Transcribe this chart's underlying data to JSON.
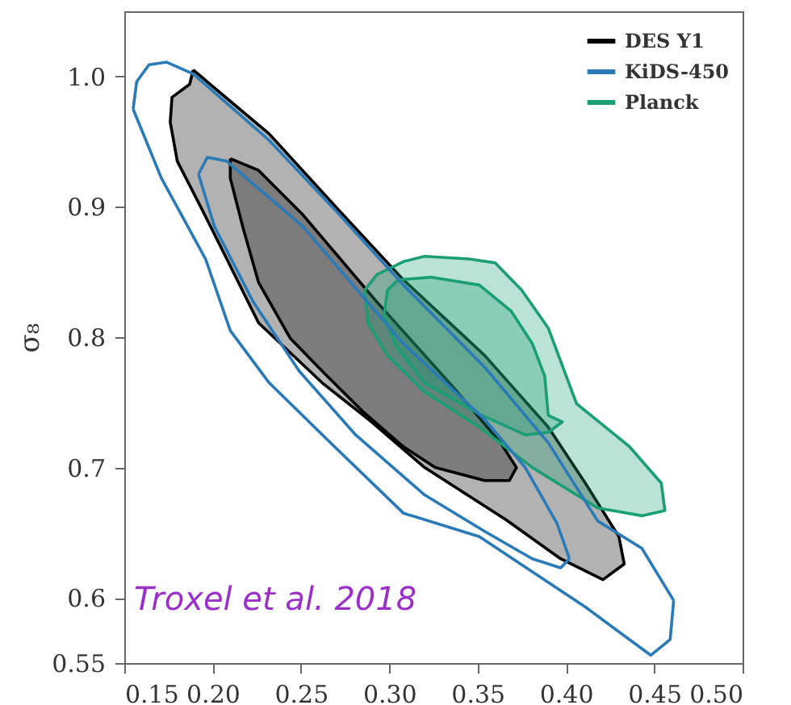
{
  "chart_data": {
    "type": "line",
    "ylabel": "σ₈",
    "xlim": [
      0.15,
      0.5
    ],
    "xticks": [
      0.15,
      {
        "value": 0.2,
        "label": "0.20"
      },
      0.25,
      {
        "value": 0.3,
        "label": "0.30"
      },
      0.35,
      {
        "value": 0.4,
        "label": "0.40"
      },
      0.45,
      {
        "value": 0.5,
        "label": "0.50"
      }
    ],
    "ylim": [
      0.55,
      1.05
    ],
    "yticks": [
      0.55,
      0.6,
      0.7,
      0.8,
      0.9,
      {
        "value": 1.0,
        "label": "1.0"
      }
    ],
    "grid": false,
    "legend": "top right",
    "marker": "none",
    "line_style": "solid",
    "annotations": [
      "Troxel et al. 2018"
    ],
    "series": [
      {
        "name": "DES Y1",
        "type": "area",
        "color": "#000000",
        "x": [
          0.189,
          0.232,
          0.269,
          0.308,
          0.354,
          0.39,
          0.411,
          0.43,
          0.433,
          0.421,
          0.397,
          0.366,
          0.32,
          0.29,
          0.262,
          0.226,
          0.208,
          0.194,
          0.18,
          0.176,
          0.177,
          0.187
        ],
        "values": [
          1.005,
          0.956,
          0.901,
          0.844,
          0.786,
          0.731,
          0.688,
          0.647,
          0.626,
          0.614,
          0.63,
          0.66,
          0.7,
          0.735,
          0.765,
          0.811,
          0.86,
          0.898,
          0.935,
          0.965,
          0.984,
          0.994
        ]
      },
      {
        "type": "area",
        "color": "#000000",
        "x": [
          0.21,
          0.226,
          0.251,
          0.293,
          0.336,
          0.363,
          0.372,
          0.368,
          0.354,
          0.326,
          0.308,
          0.285,
          0.262,
          0.244,
          0.226,
          0.217,
          0.21
        ],
        "values": [
          0.937,
          0.928,
          0.894,
          0.827,
          0.762,
          0.719,
          0.7,
          0.69,
          0.69,
          0.7,
          0.716,
          0.743,
          0.774,
          0.799,
          0.842,
          0.885,
          0.922
        ]
      },
      {
        "name": "KiDS-450",
        "color": "#2a7ab8",
        "x": [
          0.155,
          0.157,
          0.164,
          0.174,
          0.189,
          0.232,
          0.269,
          0.308,
          0.354,
          0.39,
          0.418,
          0.443,
          0.461
        ],
        "values": [
          0.975,
          0.996,
          1.009,
          1.011,
          1.002,
          0.951,
          0.898,
          0.84,
          0.777,
          0.719,
          0.659,
          0.638,
          0.598
        ]
      },
      {
        "color": "#2a7ab8",
        "x": [
          0.155,
          0.171,
          0.196,
          0.21,
          0.232,
          0.269,
          0.308,
          0.351,
          0.411,
          0.448,
          0.459,
          0.461
        ],
        "values": [
          0.975,
          0.922,
          0.86,
          0.805,
          0.765,
          0.716,
          0.665,
          0.647,
          0.593,
          0.556,
          0.568,
          0.598
        ]
      },
      {
        "color": "#2a7ab8",
        "x": [
          0.192,
          0.197,
          0.208,
          0.251,
          0.308,
          0.354,
          0.377,
          0.395,
          0.402
        ],
        "values": [
          0.925,
          0.938,
          0.935,
          0.885,
          0.795,
          0.737,
          0.7,
          0.657,
          0.63
        ]
      },
      {
        "color": "#2a7ab8",
        "x": [
          0.192,
          0.201,
          0.223,
          0.249,
          0.281,
          0.32,
          0.354,
          0.381,
          0.397,
          0.402
        ],
        "values": [
          0.925,
          0.885,
          0.827,
          0.774,
          0.725,
          0.679,
          0.651,
          0.63,
          0.623,
          0.63
        ]
      },
      {
        "name": "Planck",
        "type": "area",
        "color": "#1a9e73",
        "x": [
          0.286,
          0.293,
          0.308,
          0.32,
          0.345,
          0.36,
          0.375,
          0.39,
          0.406,
          0.436,
          0.454,
          0.456,
          0.443,
          0.418,
          0.381,
          0.351,
          0.32,
          0.299,
          0.288
        ],
        "values": [
          0.836,
          0.848,
          0.858,
          0.862,
          0.86,
          0.857,
          0.836,
          0.807,
          0.749,
          0.716,
          0.688,
          0.667,
          0.663,
          0.669,
          0.7,
          0.731,
          0.758,
          0.786,
          0.811
        ]
      },
      {
        "type": "area",
        "color": "#1a9e73",
        "x": [
          0.299,
          0.305,
          0.324,
          0.351,
          0.369,
          0.381,
          0.388,
          0.39,
          0.398,
          0.39,
          0.377,
          0.351,
          0.32,
          0.304,
          0.297
        ],
        "values": [
          0.836,
          0.844,
          0.846,
          0.84,
          0.82,
          0.795,
          0.77,
          0.74,
          0.735,
          0.727,
          0.725,
          0.741,
          0.765,
          0.793,
          0.817
        ]
      }
    ]
  }
}
